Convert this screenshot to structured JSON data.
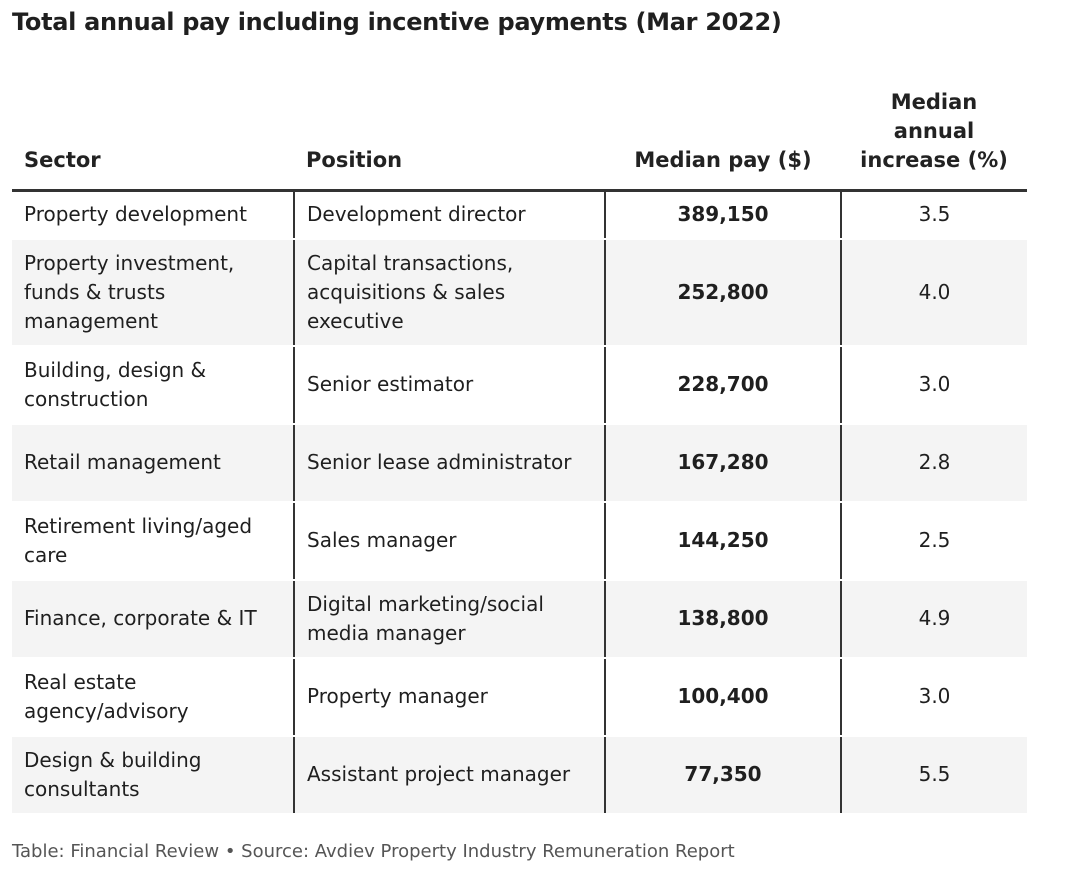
{
  "title": "Total annual pay including incentive payments (Mar 2022)",
  "chart_data": {
    "type": "table",
    "title": "Total annual pay including incentive payments (Mar 2022)",
    "columns": [
      "Sector",
      "Position",
      "Median pay ($)",
      "Median annual increase (%)"
    ],
    "rows": [
      {
        "sector": "Property development",
        "position": "Development director",
        "pay": "389,150",
        "increase": "3.5"
      },
      {
        "sector": "Property investment, funds & trusts management",
        "position": "Capital transactions, acquisitions & sales executive",
        "pay": "252,800",
        "increase": "4.0"
      },
      {
        "sector": "Building, design & construction",
        "position": "Senior estimator",
        "pay": "228,700",
        "increase": "3.0"
      },
      {
        "sector": "Retail management",
        "position": "Senior lease administrator",
        "pay": "167,280",
        "increase": "2.8"
      },
      {
        "sector": "Retirement living/aged care",
        "position": "Sales manager",
        "pay": "144,250",
        "increase": "2.5"
      },
      {
        "sector": "Finance, corporate & IT",
        "position": "Digital marketing/social media manager",
        "pay": "138,800",
        "increase": "4.9"
      },
      {
        "sector": "Real estate agency/advisory",
        "position": "Property manager",
        "pay": "100,400",
        "increase": "3.0"
      },
      {
        "sector": "Design & building consultants",
        "position": "Assistant project manager",
        "pay": "77,350",
        "increase": "5.5"
      }
    ]
  },
  "source": "Table: Financial Review • Source: Avdiev Property Industry Remuneration Report",
  "colors": {
    "row_alt": "#f4f4f4",
    "rule": "#333333",
    "text": "#1f1f1f",
    "source_text": "#555555"
  }
}
